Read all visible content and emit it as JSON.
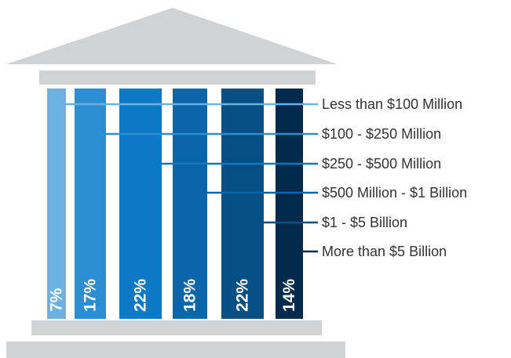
{
  "chart_data": {
    "type": "bar",
    "title": "",
    "xlabel": "",
    "ylabel": "",
    "categories": [
      "Less than $100 Million",
      "$100 - $250 Million",
      "$250 - $500 Million",
      "$500 Million - $1 Billion",
      "$1 - $5 Billion",
      "More than $5 Billion"
    ],
    "values": [
      7,
      17,
      22,
      18,
      22,
      14
    ],
    "value_labels": [
      "7%",
      "17%",
      "22%",
      "18%",
      "22%",
      "14%"
    ],
    "unit": "%",
    "legend_placement": "right",
    "grid": false,
    "colors": {
      "columns": [
        "#6bb1e3",
        "#2c8ed2",
        "#0d78c5",
        "#0a66a8",
        "#064f85",
        "#022a4f"
      ],
      "roof": "#d1d2d4",
      "text_light": "#ffffff",
      "text_dark": "#333333"
    }
  }
}
